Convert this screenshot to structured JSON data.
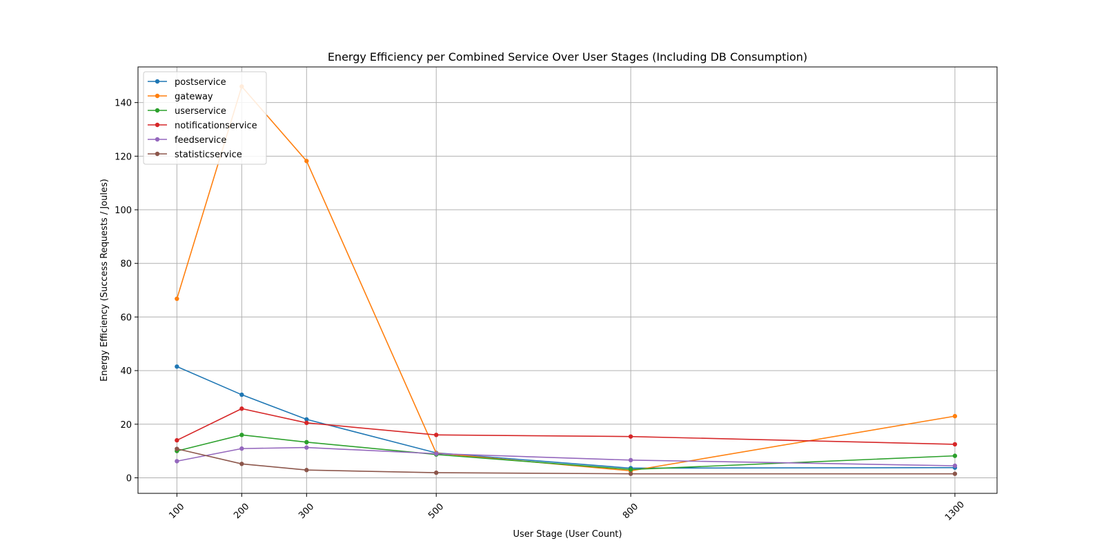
{
  "chart_data": {
    "type": "line",
    "title": "Energy Efficiency per Combined Service Over User Stages (Including DB Consumption)",
    "xlabel": "User Stage (User Count)",
    "ylabel": "Energy Efficiency (Success Requests / Joules)",
    "x": [
      100,
      200,
      300,
      500,
      800,
      1300
    ],
    "x_tick_labels": [
      "100",
      "200",
      "300",
      "500",
      "800",
      "1300"
    ],
    "y_ticks": [
      0,
      20,
      40,
      60,
      80,
      100,
      120,
      140
    ],
    "y_tick_labels": [
      "0",
      "20",
      "40",
      "60",
      "80",
      "100",
      "120",
      "140"
    ],
    "xlim": [
      40,
      1365
    ],
    "ylim": [
      -5.8,
      153.3
    ],
    "grid": true,
    "legend_position": "upper-left",
    "series": [
      {
        "name": "postservice",
        "color": "#1f77b4",
        "values": [
          41.5,
          31.0,
          21.8,
          9.3,
          3.6,
          3.8
        ]
      },
      {
        "name": "gateway",
        "color": "#ff7f0e",
        "values": [
          66.8,
          146.0,
          118.2,
          9.2,
          2.6,
          23.0
        ]
      },
      {
        "name": "userservice",
        "color": "#2ca02c",
        "values": [
          10.0,
          16.0,
          13.3,
          8.7,
          3.1,
          8.2
        ]
      },
      {
        "name": "notificationservice",
        "color": "#d62728",
        "values": [
          14.0,
          25.8,
          20.5,
          16.0,
          15.4,
          12.5
        ]
      },
      {
        "name": "feedservice",
        "color": "#9467bd",
        "values": [
          6.2,
          10.9,
          11.3,
          9.0,
          6.6,
          4.5
        ]
      },
      {
        "name": "statisticservice",
        "color": "#8c564b",
        "values": [
          10.8,
          5.2,
          2.9,
          1.9,
          1.5,
          1.5
        ]
      }
    ]
  }
}
